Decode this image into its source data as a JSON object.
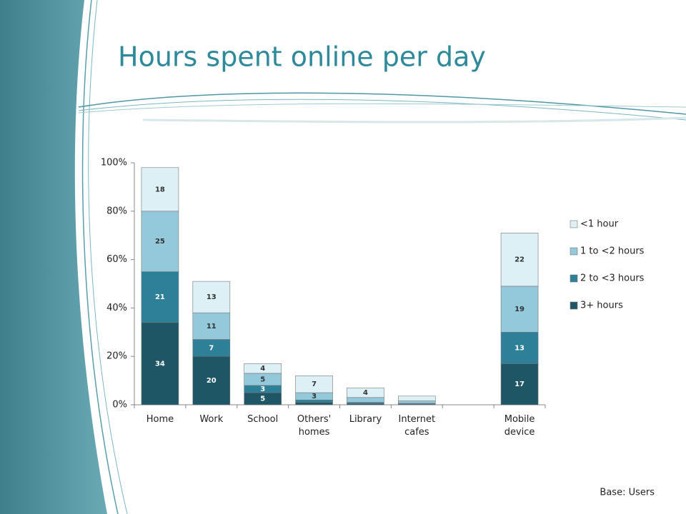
{
  "title": "Hours spent online per day",
  "footnote": "Base: Users",
  "chart_data": {
    "type": "stacked-bar",
    "categories": [
      "Home",
      "Work",
      "School",
      "Others' homes",
      "Library",
      "Internet cafes",
      null,
      "Mobile device"
    ],
    "series": [
      {
        "name": "3+ hours",
        "color": "#1f5666",
        "values": [
          34,
          20,
          5,
          1,
          0.5,
          0.3,
          null,
          17
        ],
        "value_labels": [
          "34",
          "20",
          "5",
          null,
          null,
          null,
          null,
          "17"
        ]
      },
      {
        "name": "2 to <3 hours",
        "color": "#2e8099",
        "values": [
          21,
          7,
          3,
          1,
          0.5,
          0.3,
          null,
          13
        ],
        "value_labels": [
          "21",
          "7",
          "3",
          null,
          null,
          null,
          null,
          "13"
        ]
      },
      {
        "name": "1 to <2 hours",
        "color": "#93c9da",
        "values": [
          25,
          11,
          5,
          3,
          2,
          1,
          null,
          19
        ],
        "value_labels": [
          "25",
          "11",
          "5",
          "3",
          null,
          null,
          null,
          "19"
        ]
      },
      {
        "name": "<1 hour",
        "color": "#ddf0f6",
        "values": [
          18,
          13,
          4,
          7,
          4,
          2,
          null,
          22
        ],
        "value_labels": [
          "18",
          "13",
          "4",
          "7",
          "4",
          null,
          null,
          "22"
        ]
      }
    ],
    "ylim": [
      0,
      100
    ],
    "yticks": [
      {
        "value": 0,
        "label": "0%"
      },
      {
        "value": 20,
        "label": "20%"
      },
      {
        "value": 40,
        "label": "40%"
      },
      {
        "value": 60,
        "label": "60%"
      },
      {
        "value": 80,
        "label": "80%"
      },
      {
        "value": 100,
        "label": "100%"
      }
    ],
    "grid": false,
    "legend": "right"
  }
}
